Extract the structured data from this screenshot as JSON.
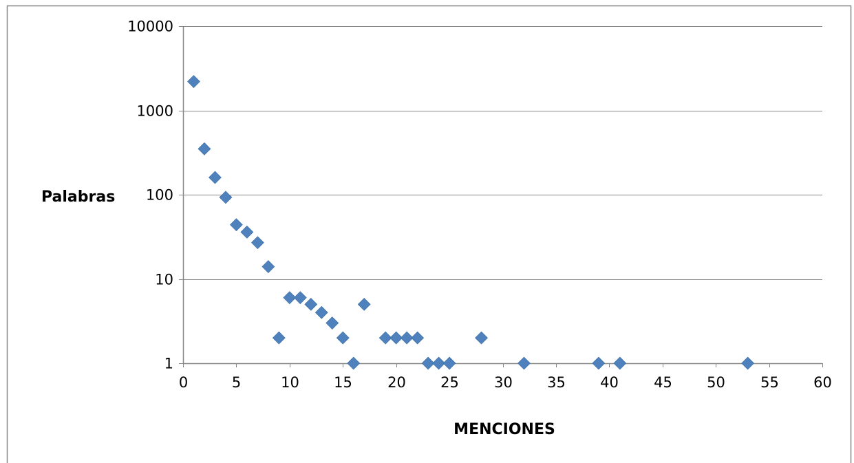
{
  "chart_data": {
    "type": "scatter",
    "title": "",
    "xlabel": "MENCIONES",
    "ylabel": "Palabras",
    "xlim": [
      0,
      60
    ],
    "ylim": [
      1,
      10000
    ],
    "y_scale": "log",
    "x_ticks": [
      "0",
      "5",
      "10",
      "15",
      "20",
      "25",
      "30",
      "35",
      "40",
      "45",
      "50",
      "55",
      "60"
    ],
    "y_ticks": [
      "1",
      "10",
      "100",
      "1000",
      "10000"
    ],
    "grid": "horizontal",
    "legend": "none",
    "marker": "diamond",
    "series": [
      {
        "x": [
          1,
          2,
          3,
          4,
          5,
          6,
          7,
          8,
          9,
          10,
          11,
          12,
          13,
          14,
          15,
          16,
          17,
          19,
          20,
          21,
          22,
          23,
          24,
          25,
          28,
          32,
          39,
          41,
          53
        ],
        "y": [
          2200,
          350,
          160,
          93,
          44,
          36,
          27,
          14,
          2,
          6,
          6,
          5,
          4,
          3,
          2,
          1,
          5,
          2,
          2,
          2,
          2,
          1,
          1,
          1,
          2,
          1,
          1,
          1,
          1
        ]
      }
    ]
  },
  "colors": {
    "marker": "#4F81BD",
    "gridline": "#868686",
    "frame": "#868686",
    "axis": "#868686",
    "background": "#ffffff"
  }
}
